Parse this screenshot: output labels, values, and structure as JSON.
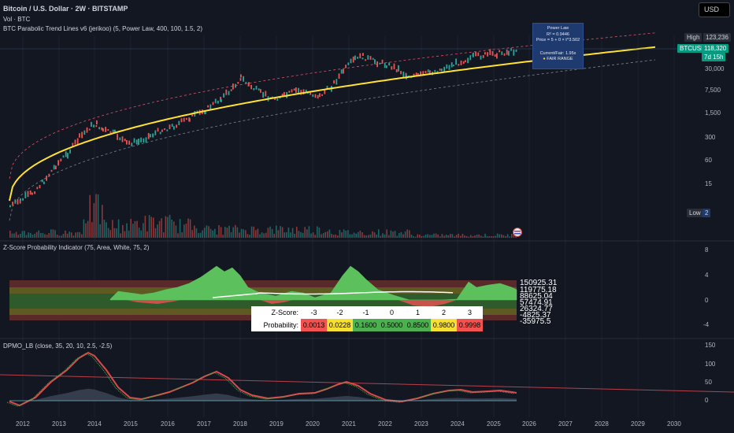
{
  "header": {
    "title": "Bitcoin / U.S. Dollar · 2W · BITSTAMP",
    "vol": "Vol · BTC",
    "indicator": "BTC Parabolic Trend Lines v6 (jerikoo) (5, Power Law, 400, 100, 1.5, 2)"
  },
  "currency_button": "USD",
  "price_axis": [
    "30,000",
    "7,500",
    "1,500",
    "300",
    "60",
    "15"
  ],
  "price_tags": {
    "high_label": "High",
    "high_value": "123,236",
    "symbol": "BTCUSD",
    "last_price": "118,320",
    "countdown": "7d 15h",
    "low_label": "Low",
    "low_value": "2"
  },
  "power_law_box": {
    "title": "Power Law",
    "r2": "R² = 0.9446",
    "formula": "Price = 5 + 0 × t^3.502",
    "current": "Current/Fair: 1.95x",
    "status": "FAIR RANGE",
    "status_color": "#f2c94c"
  },
  "zscore_pane": {
    "title": "Z-Score Probability Indicator (75, Area, White, 75, 2)",
    "axis": [
      "8",
      "4",
      "0",
      "-4"
    ],
    "level_labels": [
      "150925.31",
      "119775.18",
      "88625.04",
      "57474.91",
      "26324.77",
      "-4825.37",
      "-35975.5"
    ],
    "table": {
      "zscore_label": "Z-Score:",
      "zscores": [
        "-3",
        "-2",
        "-1",
        "0",
        "1",
        "2",
        "3"
      ],
      "probability_label": "Probability:",
      "probabilities": [
        "0.0013",
        "0.0228",
        "0.1600",
        "0.5000",
        "0.8500",
        "0.9800",
        "0.9998"
      ],
      "cell_colors": [
        "#f05350",
        "#f7e034",
        "#4caf50",
        "#4caf50",
        "#4caf50",
        "#f7e034",
        "#f05350"
      ]
    }
  },
  "dpmo_pane": {
    "title": "DPMO_LB (close, 35, 20, 10, 2.5, -2.5)",
    "axis": [
      "150",
      "100",
      "50",
      "0"
    ]
  },
  "time_axis": [
    "2012",
    "2013",
    "2014",
    "2015",
    "2016",
    "2017",
    "2018",
    "2019",
    "2020",
    "2021",
    "2022",
    "2023",
    "2024",
    "2025",
    "2026",
    "2027",
    "2028",
    "2029",
    "2030"
  ],
  "colors": {
    "background": "#131722",
    "trend_line": "#ffe135",
    "band_line": "#e0556b",
    "band_low": "#7a8290",
    "candle_up": "#26a69a",
    "candle_down": "#ef5350",
    "last_price_tag": "#089981",
    "high_tag": "#2a2e39",
    "zscore_area": "#5cc05c",
    "dpmo_line": "#d94a4a"
  }
}
